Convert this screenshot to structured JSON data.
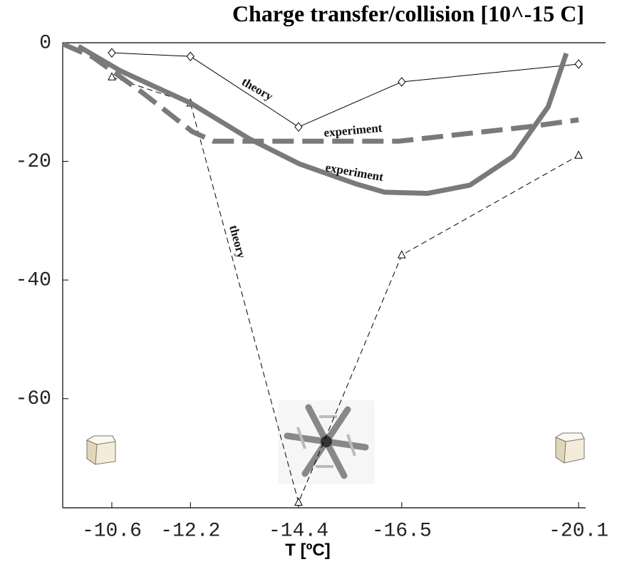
{
  "chart_data": {
    "type": "line",
    "title": "Charge transfer/collision [10^-15 C]",
    "x_label": "T [ºC]",
    "xlim": [
      -9.6,
      -20.2
    ],
    "xticks": [
      -10.6,
      -12.2,
      -14.4,
      -16.5,
      -20.1
    ],
    "ylim": [
      -78.4,
      0
    ],
    "yticks": [
      0,
      -20,
      -40,
      -60
    ],
    "series": [
      {
        "color": "#000000",
        "dash": false,
        "width": 1,
        "marker": "diamond",
        "x": [
          -10.6,
          -12.2,
          -14.4,
          -16.5,
          -20.1
        ],
        "values": [
          -1.7,
          -2.3,
          -14.2,
          -6.6,
          -3.6
        ]
      },
      {
        "color": "#000000",
        "dash": true,
        "width": 1,
        "marker": "triangle",
        "x": [
          -10.6,
          -12.2,
          -14.4,
          -16.5,
          -20.1
        ],
        "values": [
          -5.8,
          -10.2,
          -77.5,
          -35.8,
          -19
        ]
      },
      {
        "color": "#7a7a7a",
        "dash": true,
        "width": 7,
        "marker": null,
        "x": [
          -9.6,
          -10.21,
          -11.22,
          -12.24,
          -12.67,
          -14.12,
          -16.44,
          -17.74,
          -19.05,
          -20.1
        ],
        "values": [
          -0.2,
          -2.4,
          -8.4,
          -15,
          -16.6,
          -16.6,
          -16.6,
          -15.4,
          -14.2,
          -13
        ]
      },
      {
        "color": "#7a7a7a",
        "dash": false,
        "width": 7,
        "marker": null,
        "x": [
          -9.92,
          -10.79,
          -12.21,
          -13.4,
          -14.41,
          -15.57,
          -16.15,
          -17.02,
          -17.89,
          -18.76,
          -19.48,
          -19.85
        ],
        "values": [
          -0.6,
          -4.8,
          -10.2,
          -16.2,
          -20.4,
          -23.8,
          -25.2,
          -25.4,
          -24,
          -19.2,
          -10.8,
          -1.8
        ]
      }
    ],
    "annotations": [
      "theory",
      "experiment",
      "experiment",
      "theory"
    ]
  }
}
